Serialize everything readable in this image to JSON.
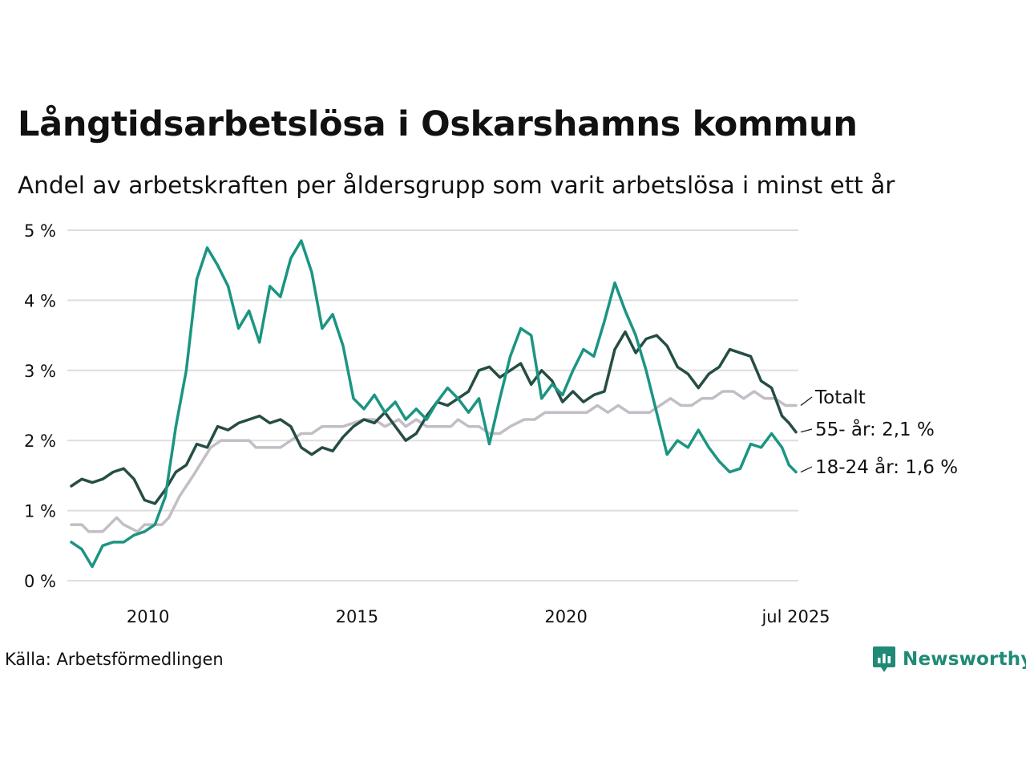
{
  "header": {
    "title": "Långtidsarbetslösa i Oskarshamns kommun",
    "subtitle": "Andel av arbetskraften per åldersgrupp som varit arbetslösa i minst ett år"
  },
  "footer": {
    "source": "Källa: Arbetsförmedlingen",
    "brand": "Newsworthy"
  },
  "colors": {
    "young": "#1b9582",
    "old": "#264d45",
    "total": "#c3bec6",
    "grid": "#dedede",
    "brand": "#1f8a75"
  },
  "chart_data": {
    "type": "line",
    "title": "Långtidsarbetslösa i Oskarshamns kommun",
    "subtitle": "Andel av arbetskraften per åldersgrupp som varit arbetslösa i minst ett år",
    "ylim": [
      0,
      5
    ],
    "y_ticks": [
      "0 %",
      "1 %",
      "2 %",
      "3 %",
      "4 %",
      "5 %"
    ],
    "y_tick_values": [
      0,
      1,
      2,
      3,
      4,
      5
    ],
    "x_range": [
      "2008-03",
      "2025-07"
    ],
    "x_ticks": [
      "2010",
      "2015",
      "2020",
      "jul 2025"
    ],
    "x_tick_dates": [
      "2010-01",
      "2015-01",
      "2020-01",
      "2025-07"
    ],
    "grid": "horizontal",
    "legend": "direct labels at line ends (right)",
    "series": [
      {
        "key": "total",
        "label": "Totalt",
        "points": [
          [
            "2008-03",
            0.8
          ],
          [
            "2008-06",
            0.8
          ],
          [
            "2008-08",
            0.7
          ],
          [
            "2008-12",
            0.7
          ],
          [
            "2009-02",
            0.8
          ],
          [
            "2009-04",
            0.9
          ],
          [
            "2009-06",
            0.8
          ],
          [
            "2009-10",
            0.7
          ],
          [
            "2010-03",
            0.8
          ],
          [
            "2009-12",
            0.8
          ],
          [
            "2010-05",
            0.8
          ],
          [
            "2010-07",
            0.9
          ],
          [
            "2010-10",
            1.2
          ],
          [
            "2011-02",
            1.5
          ],
          [
            "2011-07",
            1.9
          ],
          [
            "2011-10",
            2.0
          ],
          [
            "2012-03",
            2.0
          ],
          [
            "2012-06",
            2.0
          ],
          [
            "2012-08",
            1.9
          ],
          [
            "2013-03",
            1.9
          ],
          [
            "2013-06",
            2.0
          ],
          [
            "2013-09",
            2.1
          ],
          [
            "2013-12",
            2.1
          ],
          [
            "2014-03",
            2.2
          ],
          [
            "2014-06",
            2.2
          ],
          [
            "2014-09",
            2.2
          ],
          [
            "2015-03",
            2.3
          ],
          [
            "2015-06",
            2.3
          ],
          [
            "2015-09",
            2.2
          ],
          [
            "2016-01",
            2.3
          ],
          [
            "2016-03",
            2.2
          ],
          [
            "2016-06",
            2.3
          ],
          [
            "2016-09",
            2.2
          ],
          [
            "2017-01",
            2.2
          ],
          [
            "2017-04",
            2.2
          ],
          [
            "2017-06",
            2.3
          ],
          [
            "2017-09",
            2.2
          ],
          [
            "2017-12",
            2.2
          ],
          [
            "2018-03",
            2.1
          ],
          [
            "2018-06",
            2.1
          ],
          [
            "2018-09",
            2.2
          ],
          [
            "2019-01",
            2.3
          ],
          [
            "2019-04",
            2.3
          ],
          [
            "2019-07",
            2.4
          ],
          [
            "2019-10",
            2.4
          ],
          [
            "2020-01",
            2.4
          ],
          [
            "2020-04",
            2.4
          ],
          [
            "2020-07",
            2.4
          ],
          [
            "2020-10",
            2.5
          ],
          [
            "2021-01",
            2.4
          ],
          [
            "2021-04",
            2.5
          ],
          [
            "2021-07",
            2.4
          ],
          [
            "2021-10",
            2.4
          ],
          [
            "2022-01",
            2.4
          ],
          [
            "2022-04",
            2.5
          ],
          [
            "2022-07",
            2.6
          ],
          [
            "2022-10",
            2.5
          ],
          [
            "2023-01",
            2.5
          ],
          [
            "2023-04",
            2.6
          ],
          [
            "2023-07",
            2.6
          ],
          [
            "2023-10",
            2.7
          ],
          [
            "2024-01",
            2.7
          ],
          [
            "2024-04",
            2.6
          ],
          [
            "2024-07",
            2.7
          ],
          [
            "2024-10",
            2.6
          ],
          [
            "2025-01",
            2.6
          ],
          [
            "2025-04",
            2.5
          ],
          [
            "2025-07",
            2.5
          ]
        ]
      },
      {
        "key": "old",
        "label": "55- år: 2,1 %",
        "points": [
          [
            "2008-03",
            1.35
          ],
          [
            "2008-06",
            1.45
          ],
          [
            "2008-09",
            1.4
          ],
          [
            "2008-12",
            1.45
          ],
          [
            "2009-03",
            1.55
          ],
          [
            "2009-06",
            1.6
          ],
          [
            "2009-09",
            1.45
          ],
          [
            "2009-12",
            1.15
          ],
          [
            "2010-03",
            1.1
          ],
          [
            "2010-06",
            1.3
          ],
          [
            "2010-09",
            1.55
          ],
          [
            "2010-12",
            1.65
          ],
          [
            "2011-03",
            1.95
          ],
          [
            "2011-06",
            1.9
          ],
          [
            "2011-09",
            2.2
          ],
          [
            "2011-12",
            2.15
          ],
          [
            "2012-03",
            2.25
          ],
          [
            "2012-06",
            2.3
          ],
          [
            "2012-09",
            2.35
          ],
          [
            "2012-12",
            2.25
          ],
          [
            "2013-03",
            2.3
          ],
          [
            "2013-06",
            2.2
          ],
          [
            "2013-09",
            1.9
          ],
          [
            "2013-12",
            1.8
          ],
          [
            "2014-03",
            1.9
          ],
          [
            "2014-06",
            1.85
          ],
          [
            "2014-09",
            2.05
          ],
          [
            "2014-12",
            2.2
          ],
          [
            "2015-03",
            2.3
          ],
          [
            "2015-06",
            2.25
          ],
          [
            "2015-09",
            2.4
          ],
          [
            "2015-12",
            2.2
          ],
          [
            "2016-03",
            2.0
          ],
          [
            "2016-06",
            2.1
          ],
          [
            "2016-09",
            2.35
          ],
          [
            "2016-12",
            2.55
          ],
          [
            "2017-03",
            2.5
          ],
          [
            "2017-06",
            2.6
          ],
          [
            "2017-09",
            2.7
          ],
          [
            "2017-12",
            3.0
          ],
          [
            "2018-03",
            3.05
          ],
          [
            "2018-06",
            2.9
          ],
          [
            "2018-09",
            3.0
          ],
          [
            "2018-12",
            3.1
          ],
          [
            "2019-03",
            2.8
          ],
          [
            "2019-06",
            3.0
          ],
          [
            "2019-09",
            2.85
          ],
          [
            "2019-12",
            2.55
          ],
          [
            "2020-03",
            2.7
          ],
          [
            "2020-06",
            2.55
          ],
          [
            "2020-09",
            2.65
          ],
          [
            "2020-12",
            2.7
          ],
          [
            "2021-03",
            3.3
          ],
          [
            "2021-06",
            3.55
          ],
          [
            "2021-09",
            3.25
          ],
          [
            "2021-12",
            3.45
          ],
          [
            "2022-03",
            3.5
          ],
          [
            "2022-06",
            3.35
          ],
          [
            "2022-09",
            3.05
          ],
          [
            "2022-12",
            2.95
          ],
          [
            "2023-03",
            2.75
          ],
          [
            "2023-06",
            2.95
          ],
          [
            "2023-09",
            3.05
          ],
          [
            "2023-12",
            3.3
          ],
          [
            "2024-03",
            3.25
          ],
          [
            "2024-06",
            3.2
          ],
          [
            "2024-09",
            2.85
          ],
          [
            "2024-12",
            2.75
          ],
          [
            "2025-03",
            2.35
          ],
          [
            "2025-05",
            2.25
          ],
          [
            "2025-07",
            2.12
          ]
        ]
      },
      {
        "key": "young",
        "label": "18-24 år: 1,6 %",
        "points": [
          [
            "2008-03",
            0.55
          ],
          [
            "2008-06",
            0.45
          ],
          [
            "2008-09",
            0.2
          ],
          [
            "2008-12",
            0.5
          ],
          [
            "2009-03",
            0.55
          ],
          [
            "2009-06",
            0.55
          ],
          [
            "2009-09",
            0.65
          ],
          [
            "2009-12",
            0.7
          ],
          [
            "2010-03",
            0.8
          ],
          [
            "2010-06",
            1.2
          ],
          [
            "2010-09",
            2.2
          ],
          [
            "2010-12",
            3.0
          ],
          [
            "2011-03",
            4.3
          ],
          [
            "2011-06",
            4.75
          ],
          [
            "2011-09",
            4.5
          ],
          [
            "2011-12",
            4.2
          ],
          [
            "2012-03",
            3.6
          ],
          [
            "2012-06",
            3.85
          ],
          [
            "2012-09",
            3.4
          ],
          [
            "2012-12",
            4.2
          ],
          [
            "2013-03",
            4.05
          ],
          [
            "2013-06",
            4.6
          ],
          [
            "2013-09",
            4.85
          ],
          [
            "2013-12",
            4.4
          ],
          [
            "2014-03",
            3.6
          ],
          [
            "2014-06",
            3.8
          ],
          [
            "2014-09",
            3.35
          ],
          [
            "2014-12",
            2.6
          ],
          [
            "2015-03",
            2.45
          ],
          [
            "2015-06",
            2.65
          ],
          [
            "2015-09",
            2.4
          ],
          [
            "2015-12",
            2.55
          ],
          [
            "2016-03",
            2.3
          ],
          [
            "2016-06",
            2.45
          ],
          [
            "2016-09",
            2.3
          ],
          [
            "2016-12",
            2.55
          ],
          [
            "2017-03",
            2.75
          ],
          [
            "2017-06",
            2.6
          ],
          [
            "2017-09",
            2.4
          ],
          [
            "2017-12",
            2.6
          ],
          [
            "2018-03",
            1.95
          ],
          [
            "2018-06",
            2.6
          ],
          [
            "2018-09",
            3.2
          ],
          [
            "2018-12",
            3.6
          ],
          [
            "2019-03",
            3.5
          ],
          [
            "2019-06",
            2.6
          ],
          [
            "2019-09",
            2.8
          ],
          [
            "2019-12",
            2.65
          ],
          [
            "2020-03",
            3.0
          ],
          [
            "2020-06",
            3.3
          ],
          [
            "2020-09",
            3.2
          ],
          [
            "2020-12",
            3.7
          ],
          [
            "2021-03",
            4.25
          ],
          [
            "2021-06",
            3.85
          ],
          [
            "2021-09",
            3.5
          ],
          [
            "2021-12",
            3.0
          ],
          [
            "2022-03",
            2.4
          ],
          [
            "2022-06",
            1.8
          ],
          [
            "2022-09",
            2.0
          ],
          [
            "2022-12",
            1.9
          ],
          [
            "2023-03",
            2.15
          ],
          [
            "2023-06",
            1.9
          ],
          [
            "2023-09",
            1.7
          ],
          [
            "2023-12",
            1.55
          ],
          [
            "2024-03",
            1.6
          ],
          [
            "2024-06",
            1.95
          ],
          [
            "2024-09",
            1.9
          ],
          [
            "2024-12",
            2.1
          ],
          [
            "2025-03",
            1.9
          ],
          [
            "2025-05",
            1.65
          ],
          [
            "2025-07",
            1.55
          ]
        ]
      }
    ]
  }
}
